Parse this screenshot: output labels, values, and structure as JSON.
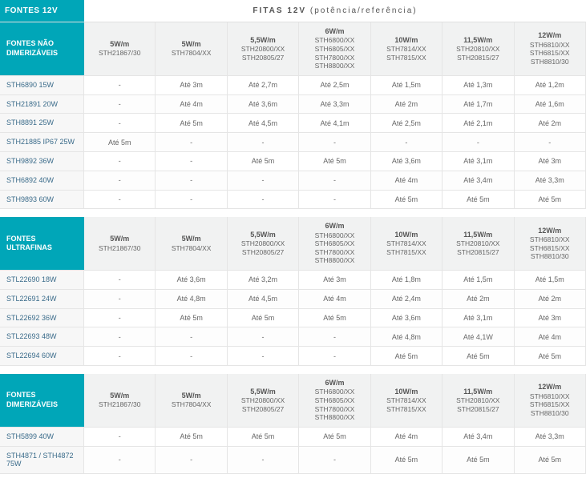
{
  "header": {
    "left": "FONTES 12V",
    "right_bold": "FITAS 12V",
    "right_paren": "(potência/referência)"
  },
  "columns": [
    {
      "power": "5W/m",
      "refs": [
        "STH21867/30"
      ]
    },
    {
      "power": "5W/m",
      "refs": [
        "STH7804/XX"
      ]
    },
    {
      "power": "5,5W/m",
      "refs": [
        "STH20800/XX",
        "STH20805/27"
      ]
    },
    {
      "power": "6W/m",
      "refs": [
        "STH6800/XX",
        "STH6805/XX",
        "STH7800/XX",
        "STH8800/XX"
      ]
    },
    {
      "power": "10W/m",
      "refs": [
        "STH7814/XX",
        "STH7815/XX"
      ]
    },
    {
      "power": "11,5W/m",
      "refs": [
        "STH20810/XX",
        "STH20815/27"
      ]
    },
    {
      "power": "12W/m",
      "refs": [
        "STH6810/XX",
        "STH6815/XX",
        "STH8810/30"
      ]
    }
  ],
  "sections": [
    {
      "title": "FONTES NÃO DIMERIZÁVEIS",
      "rows": [
        {
          "label": "STH6890 15W",
          "cells": [
            "-",
            "Até 3m",
            "Até 2,7m",
            "Até 2,5m",
            "Até 1,5m",
            "Até 1,3m",
            "Até 1,2m"
          ]
        },
        {
          "label": "STH21891 20W",
          "cells": [
            "-",
            "Até 4m",
            "Até 3,6m",
            "Até 3,3m",
            "Até 2m",
            "Até 1,7m",
            "Até 1,6m"
          ]
        },
        {
          "label": "STH8891 25W",
          "cells": [
            "-",
            "Até 5m",
            "Até 4,5m",
            "Até 4,1m",
            "Até 2,5m",
            "Até 2,1m",
            "Até 2m"
          ]
        },
        {
          "label": "STH21885 IP67 25W",
          "cells": [
            "Até 5m",
            "-",
            "-",
            "-",
            "-",
            "-",
            "-"
          ]
        },
        {
          "label": "STH9892 36W",
          "cells": [
            "-",
            "-",
            "Até 5m",
            "Até 5m",
            "Até 3,6m",
            "Até 3,1m",
            "Até 3m"
          ]
        },
        {
          "label": "STH6892 40W",
          "cells": [
            "-",
            "-",
            "-",
            "-",
            "Até 4m",
            "Até 3,4m",
            "Até 3,3m"
          ]
        },
        {
          "label": "STH9893 60W",
          "cells": [
            "-",
            "-",
            "-",
            "-",
            "Até 5m",
            "Até 5m",
            "Até 5m"
          ]
        }
      ]
    },
    {
      "title": "FONTES ULTRAFINAS",
      "rows": [
        {
          "label": "STL22690 18W",
          "cells": [
            "-",
            "Até 3,6m",
            "Até 3,2m",
            "Até 3m",
            "Até 1,8m",
            "Até 1,5m",
            "Até 1,5m"
          ]
        },
        {
          "label": "STL22691 24W",
          "cells": [
            "-",
            "Até 4,8m",
            "Até 4,5m",
            "Até 4m",
            "Até 2,4m",
            "Até 2m",
            "Até 2m"
          ]
        },
        {
          "label": "STL22692 36W",
          "cells": [
            "-",
            "Até 5m",
            "Até 5m",
            "Até 5m",
            "Até 3,6m",
            "Até 3,1m",
            "Até 3m"
          ]
        },
        {
          "label": "STL22693 48W",
          "cells": [
            "-",
            "-",
            "-",
            "-",
            "Até 4,8m",
            "Até 4,1W",
            "Até 4m"
          ]
        },
        {
          "label": "STL22694 60W",
          "cells": [
            "-",
            "-",
            "-",
            "-",
            "Até 5m",
            "Até 5m",
            "Até 5m"
          ]
        }
      ]
    },
    {
      "title": "FONTES DIMERIZÁVEIS",
      "rows": [
        {
          "label": "STH5899 40W",
          "cells": [
            "-",
            "Até 5m",
            "Até 5m",
            "Até 5m",
            "Até 4m",
            "Até 3,4m",
            "Até 3,3m"
          ]
        },
        {
          "label": "STH4871 / STH4872 75W",
          "cells": [
            "-",
            "-",
            "-",
            "-",
            "Até 5m",
            "Até 5m",
            "Até 5m"
          ]
        }
      ]
    }
  ],
  "colors": {
    "teal": "#00a6b8",
    "grey_bg": "#f1f2f2",
    "text_grey": "#666666",
    "label_blue": "#3a6b8a",
    "border": "#e5e5e5"
  }
}
